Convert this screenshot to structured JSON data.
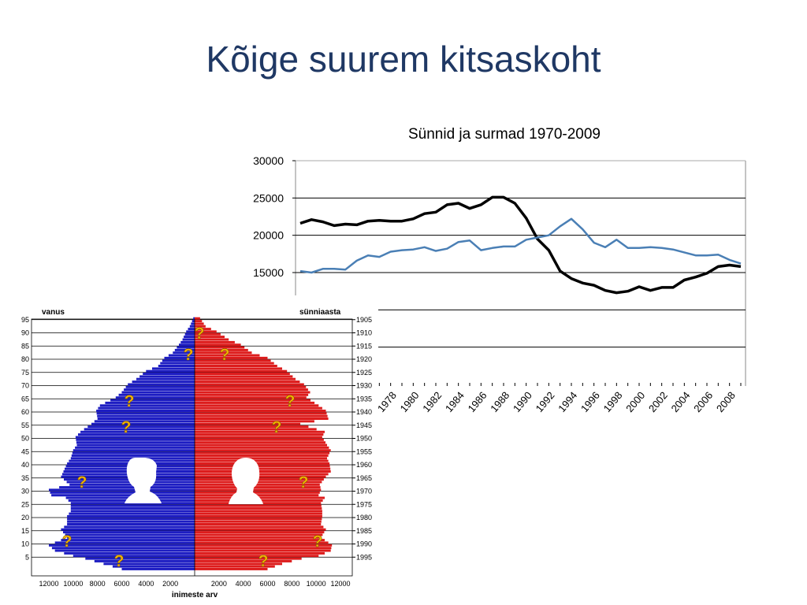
{
  "slide": {
    "title": "Kõige suurem kitsaskoht"
  },
  "colors": {
    "title": "#1f3864",
    "births": "#000000",
    "deaths": "#4a7fb5",
    "male": "#1d1dc2",
    "female": "#dd1c1c",
    "question": "#f2b200"
  },
  "chart_data": [
    {
      "type": "line",
      "title": "Sünnid ja surmad 1970-2009",
      "ylim": [
        0,
        30000
      ],
      "yticks": [
        15000,
        20000,
        25000,
        30000
      ],
      "grid": true,
      "legend": "none",
      "x": [
        1970,
        1971,
        1972,
        1973,
        1974,
        1975,
        1976,
        1977,
        1978,
        1979,
        1980,
        1981,
        1982,
        1983,
        1984,
        1985,
        1986,
        1987,
        1988,
        1989,
        1990,
        1991,
        1992,
        1993,
        1994,
        1995,
        1996,
        1997,
        1998,
        1999,
        2000,
        2001,
        2002,
        2003,
        2004,
        2005,
        2006,
        2007,
        2008,
        2009
      ],
      "xtick_labels": [
        "1978",
        "1980",
        "1982",
        "1984",
        "1986",
        "1988",
        "1990",
        "1992",
        "1994",
        "1996",
        "1998",
        "2000",
        "2002",
        "2004",
        "2006",
        "2008"
      ],
      "series": [
        {
          "values": [
            21600,
            22100,
            21800,
            21300,
            21500,
            21400,
            21900,
            22000,
            21900,
            21900,
            22200,
            22900,
            23100,
            24100,
            24300,
            23600,
            24100,
            25100,
            25100,
            24300,
            22300,
            19500,
            18000,
            15200,
            14200,
            13600,
            13300,
            12600,
            12300,
            12500,
            13100,
            12600,
            13000,
            13000,
            14000,
            14400,
            14900,
            15800,
            16000,
            15800
          ]
        },
        {
          "values": [
            15200,
            15000,
            15500,
            15500,
            15400,
            16600,
            17300,
            17100,
            17800,
            18000,
            18100,
            18400,
            17900,
            18200,
            19100,
            19300,
            18000,
            18300,
            18500,
            18500,
            19400,
            19700,
            20000,
            21200,
            22200,
            20800,
            19000,
            18400,
            19400,
            18300,
            18300,
            18400,
            18300,
            18100,
            17700,
            17300,
            17300,
            17400,
            16700,
            16200
          ]
        }
      ]
    },
    {
      "type": "bar",
      "orientation": "horizontal-population-pyramid",
      "ylabel": "vanus",
      "ylabel_right": "sünniaasta",
      "xlabel": "inimeste arv",
      "age_ticks": [
        "5",
        "10",
        "15",
        "20",
        "25",
        "30",
        "35",
        "40",
        "45",
        "50",
        "55",
        "60",
        "65",
        "70",
        "75",
        "80",
        "85",
        "90",
        "95"
      ],
      "year_ticks": [
        "1905",
        "1910",
        "1915",
        "1920",
        "1925",
        "1930",
        "1935",
        "1940",
        "1945",
        "1950",
        "1955",
        "1960",
        "1965",
        "1970",
        "1975",
        "1980",
        "1985",
        "1990",
        "1995"
      ],
      "x_tick_labels_left": [
        "12000",
        "10000",
        "8000",
        "6000",
        "4000",
        "2000"
      ],
      "x_tick_labels_right": [
        "2000",
        "4000",
        "6000",
        "8000",
        "10000",
        "12000"
      ],
      "xlim": [
        0,
        13000
      ],
      "question_mark": "?",
      "series": [
        {
          "side": "left",
          "ages": [
            0,
            2,
            4,
            5,
            7,
            9,
            10,
            12,
            15,
            17,
            20,
            22,
            25,
            27,
            28,
            30,
            32,
            35,
            37,
            40,
            42,
            45,
            47,
            50,
            52,
            55,
            57,
            60,
            62,
            65,
            67,
            70,
            72,
            75,
            77,
            80,
            82,
            85,
            87,
            90,
            92,
            95,
            96
          ],
          "values": [
            6000,
            7500,
            9000,
            10000,
            11500,
            12000,
            11500,
            10500,
            11000,
            10500,
            10500,
            10200,
            10200,
            10600,
            11800,
            12000,
            10300,
            11000,
            10800,
            10500,
            10200,
            10000,
            9700,
            9800,
            9400,
            8500,
            8000,
            8100,
            7800,
            6500,
            6000,
            5500,
            4800,
            4000,
            3000,
            2500,
            1800,
            1300,
            1000,
            700,
            400,
            120,
            0
          ]
        },
        {
          "side": "right",
          "ages": [
            0,
            2,
            4,
            5,
            7,
            9,
            10,
            12,
            15,
            17,
            20,
            22,
            25,
            27,
            28,
            30,
            32,
            35,
            37,
            40,
            42,
            45,
            47,
            50,
            52,
            55,
            57,
            60,
            62,
            65,
            67,
            70,
            72,
            75,
            77,
            80,
            82,
            85,
            87,
            90,
            92,
            95,
            96
          ],
          "values": [
            6000,
            7200,
            8800,
            10200,
            11200,
            11300,
            11000,
            10400,
            10800,
            10400,
            10500,
            10500,
            10400,
            10700,
            10200,
            10400,
            10300,
            10800,
            11200,
            11100,
            10900,
            11200,
            10900,
            10500,
            10700,
            8700,
            11000,
            10800,
            10200,
            9200,
            9500,
            9000,
            8300,
            7600,
            6800,
            6000,
            4700,
            3800,
            2800,
            1800,
            900,
            450,
            0
          ]
        }
      ]
    }
  ]
}
